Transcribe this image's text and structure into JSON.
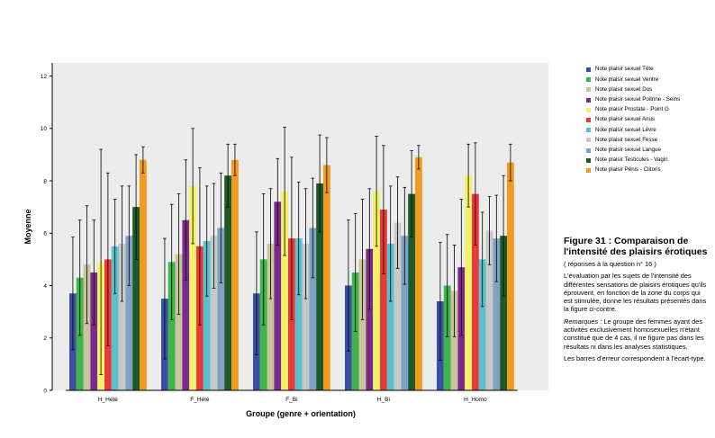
{
  "figure": {
    "title": "Figure 31 : Comparaison de l'intensité des plaisirs érotiques",
    "subtitle": "( réponses à la question n° 16 )",
    "paragraph1": "L'évaluation par les sujets de l'intensité des différentes sensations de plaisirs érotiques qu'ils éprouvent, en fonction de la zone du corps qui est stimulée, donne les résultats présentés dans la figure ci-contre.",
    "remark_label": "Remarques",
    "remark_text": " : Le groupe des femmes ayant des activités exclusivement homosexuelles n'étant constitué que de 4 cas, il ne figure pas dans les résultats ni dans les analyses statistiques.",
    "paragraph3": "Les barres d'erreur correspondent à l'écart-type."
  },
  "chart_data": {
    "type": "bar",
    "xlabel": "Groupe (genre + orientation)",
    "ylabel": "Moyenne",
    "ylim": [
      0,
      12.5
    ],
    "yticks": [
      0,
      2,
      4,
      6,
      8,
      10,
      12
    ],
    "grid": false,
    "legend_position": "right",
    "plot_background": "#ececec",
    "error_bars": "écart-type",
    "categories": [
      "H_Hété",
      "F_Hété",
      "F_Bi",
      "H_Bi",
      "H_Homo"
    ],
    "series": [
      {
        "name": "Note plaisir sexuel Tête",
        "color": "#3a4fa3",
        "values": [
          3.7,
          3.5,
          3.7,
          4.0,
          3.4
        ],
        "err": [
          2.15,
          2.3,
          2.35,
          2.5,
          2.25
        ]
      },
      {
        "name": "Note plaisir sexuel Ventre",
        "color": "#3db54a",
        "values": [
          4.3,
          4.9,
          5.0,
          4.5,
          4.0
        ],
        "err": [
          2.2,
          2.2,
          2.5,
          2.25,
          1.95
        ]
      },
      {
        "name": "Note plaisir sexuel Dos",
        "color": "#c9c49a",
        "values": [
          4.8,
          5.2,
          5.6,
          5.0,
          3.8
        ],
        "err": [
          2.25,
          2.3,
          2.1,
          2.3,
          1.75
        ]
      },
      {
        "name": "Note plaisir sexuel Poitrine - Seins",
        "color": "#7a2a8a",
        "values": [
          4.5,
          6.5,
          7.2,
          5.4,
          4.7
        ],
        "err": [
          2.0,
          2.3,
          1.65,
          2.3,
          2.6
        ]
      },
      {
        "name": "Note plaisir Prostate - Point G",
        "color": "#f4f06b",
        "values": [
          4.9,
          7.8,
          7.6,
          7.6,
          8.2
        ],
        "err": [
          4.3,
          2.2,
          2.45,
          2.1,
          1.2
        ]
      },
      {
        "name": "Note plaisir sexuel Anus",
        "color": "#e63b3b",
        "values": [
          5.0,
          5.5,
          5.8,
          6.9,
          7.5
        ],
        "err": [
          3.3,
          3.0,
          3.1,
          2.45,
          1.95
        ]
      },
      {
        "name": "Note plaisir sexuel Lèvre",
        "color": "#5bc0cc",
        "values": [
          5.5,
          5.7,
          5.8,
          5.6,
          5.0
        ],
        "err": [
          1.8,
          2.1,
          2.15,
          2.2,
          1.8
        ]
      },
      {
        "name": "Note plaisir sexuel Fesse",
        "color": "#c8c8c8",
        "values": [
          5.6,
          5.9,
          5.6,
          6.4,
          6.1
        ],
        "err": [
          2.2,
          2.0,
          2.1,
          1.75,
          1.3
        ]
      },
      {
        "name": "Note plaisir sexuel Langue",
        "color": "#7fa2c4",
        "values": [
          5.9,
          6.2,
          6.2,
          5.9,
          5.8
        ],
        "err": [
          1.9,
          2.1,
          1.9,
          1.85,
          1.65
        ]
      },
      {
        "name": "Note plaisir Testicules - Vagin",
        "color": "#1b5a2a",
        "values": [
          7.0,
          8.2,
          7.9,
          7.5,
          5.9
        ],
        "err": [
          2.0,
          1.2,
          1.85,
          1.65,
          2.3
        ]
      },
      {
        "name": "Note plaisir Pénis - Clitoris",
        "color": "#f39a1e",
        "values": [
          8.8,
          8.8,
          8.6,
          8.9,
          8.7
        ],
        "err": [
          0.5,
          0.6,
          1.05,
          0.45,
          0.7
        ]
      }
    ]
  }
}
